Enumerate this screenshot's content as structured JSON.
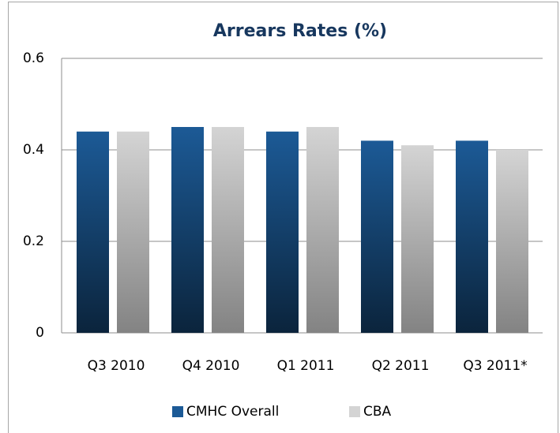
{
  "chart_data": {
    "type": "bar",
    "title": "Arrears Rates (%)",
    "categories": [
      "Q3 2010",
      "Q4 2010",
      "Q1 2011",
      "Q2 2011",
      "Q3 2011*"
    ],
    "series": [
      {
        "name": "CMHC Overall",
        "color": "#1c5a96",
        "values": [
          0.44,
          0.45,
          0.44,
          0.42,
          0.42
        ]
      },
      {
        "name": "CBA",
        "color": "#d4d4d4",
        "values": [
          0.44,
          0.45,
          0.45,
          0.41,
          0.4
        ]
      }
    ],
    "ylim": [
      0,
      0.6
    ],
    "yticks": [
      0,
      0.2,
      0.4,
      0.6
    ],
    "grid": true,
    "legend": "bottom"
  }
}
